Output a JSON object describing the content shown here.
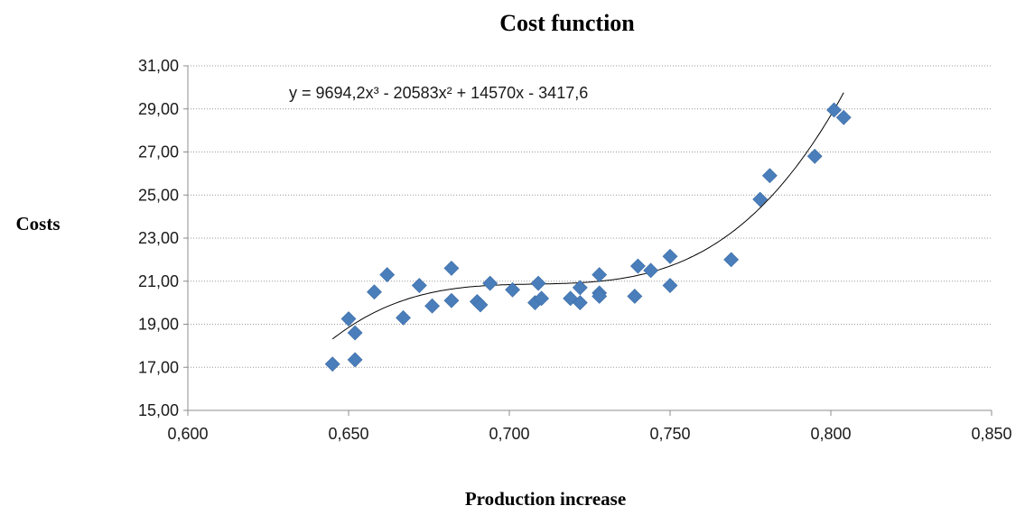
{
  "chart_data": {
    "type": "scatter",
    "title": "Cost function",
    "xlabel": "Production increase",
    "ylabel": "Costs",
    "xlim": [
      0.6,
      0.85
    ],
    "ylim": [
      15,
      31
    ],
    "x_ticks": [
      "0,600",
      "0,650",
      "0,700",
      "0,750",
      "0,800",
      "0,850"
    ],
    "y_ticks": [
      "15,00",
      "17,00",
      "19,00",
      "21,00",
      "23,00",
      "25,00",
      "27,00",
      "29,00",
      "31,00"
    ],
    "grid": "horizontal dotted",
    "marker_color": "#4a7ebb",
    "trendline": {
      "label": "y = 9694,2x³ - 20583x² + 14570x - 3417,6",
      "coefficients": [
        9694.2,
        -20583,
        14570,
        -3417.6
      ],
      "x_range": [
        0.645,
        0.804
      ]
    },
    "points": [
      [
        0.645,
        17.15
      ],
      [
        0.65,
        19.25
      ],
      [
        0.652,
        18.6
      ],
      [
        0.652,
        17.35
      ],
      [
        0.658,
        20.5
      ],
      [
        0.662,
        21.3
      ],
      [
        0.667,
        19.3
      ],
      [
        0.672,
        20.8
      ],
      [
        0.676,
        19.85
      ],
      [
        0.682,
        21.6
      ],
      [
        0.682,
        20.1
      ],
      [
        0.69,
        20.05
      ],
      [
        0.691,
        19.9
      ],
      [
        0.694,
        20.9
      ],
      [
        0.701,
        20.6
      ],
      [
        0.708,
        20.0
      ],
      [
        0.709,
        20.9
      ],
      [
        0.71,
        20.2
      ],
      [
        0.719,
        20.2
      ],
      [
        0.722,
        20.7
      ],
      [
        0.722,
        20.0
      ],
      [
        0.728,
        21.3
      ],
      [
        0.728,
        20.45
      ],
      [
        0.728,
        20.3
      ],
      [
        0.739,
        20.3
      ],
      [
        0.74,
        21.7
      ],
      [
        0.744,
        21.5
      ],
      [
        0.75,
        22.15
      ],
      [
        0.75,
        20.8
      ],
      [
        0.769,
        22.0
      ],
      [
        0.778,
        24.8
      ],
      [
        0.781,
        25.9
      ],
      [
        0.795,
        26.8
      ],
      [
        0.801,
        28.95
      ],
      [
        0.804,
        28.6
      ]
    ]
  }
}
